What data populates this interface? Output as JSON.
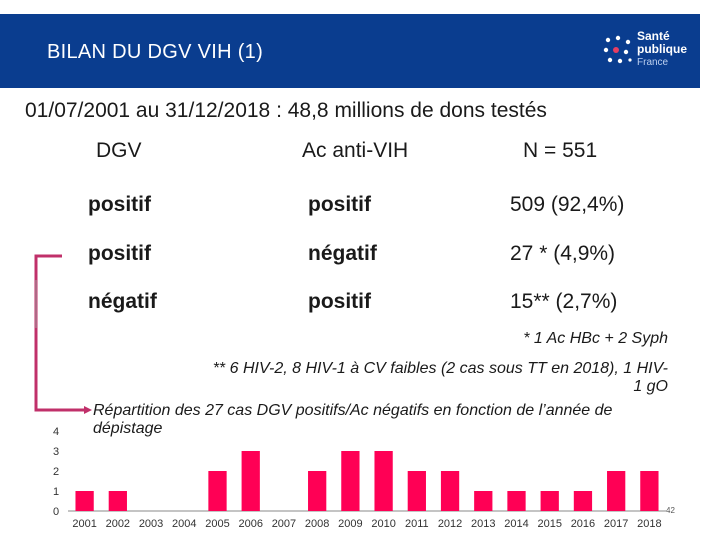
{
  "header": {
    "title": "BILAN DU DGV VIH (1)",
    "bg_color": "#0a3d8f"
  },
  "logo": {
    "line1": "Santé",
    "line2": "publique",
    "line3": "France"
  },
  "subtitle": "01/07/2001 au 31/12/2018 : 48,8 millions de dons testés",
  "table": {
    "headers": [
      "DGV",
      "Ac anti-VIH",
      "N = 551"
    ],
    "rows": [
      [
        "positif",
        "positif",
        "509 (92,4%)"
      ],
      [
        "positif",
        "négatif",
        "27 * (4,9%)"
      ],
      [
        "négatif",
        "positif",
        "15** (2,7%)"
      ]
    ]
  },
  "notes": {
    "note1": "* 1 Ac HBc + 2 Syph",
    "note2_line1": "** 6 HIV-2, 8 HIV-1 à CV faibles (2 cas sous TT en 2018), 1 HIV-",
    "note2_line2": "1 gO"
  },
  "bracket_color": "#c0306a",
  "page_number": "42",
  "chart_data": {
    "type": "bar",
    "title": "Répartition des 27 cas DGV positifs/Ac négatifs en fonction de l’année de dépistage",
    "categories": [
      "2001",
      "2002",
      "2003",
      "2004",
      "2005",
      "2006",
      "2007",
      "2008",
      "2009",
      "2010",
      "2011",
      "2012",
      "2013",
      "2014",
      "2015",
      "2016",
      "2017",
      "2018"
    ],
    "values": [
      1,
      1,
      0,
      0,
      2,
      3,
      0,
      2,
      3,
      3,
      2,
      2,
      1,
      1,
      1,
      1,
      2,
      2
    ],
    "ylim": [
      0,
      4
    ],
    "yticks": [
      0,
      1,
      2,
      3,
      4
    ],
    "bar_color": "#ff0055",
    "xlabel": "",
    "ylabel": ""
  }
}
